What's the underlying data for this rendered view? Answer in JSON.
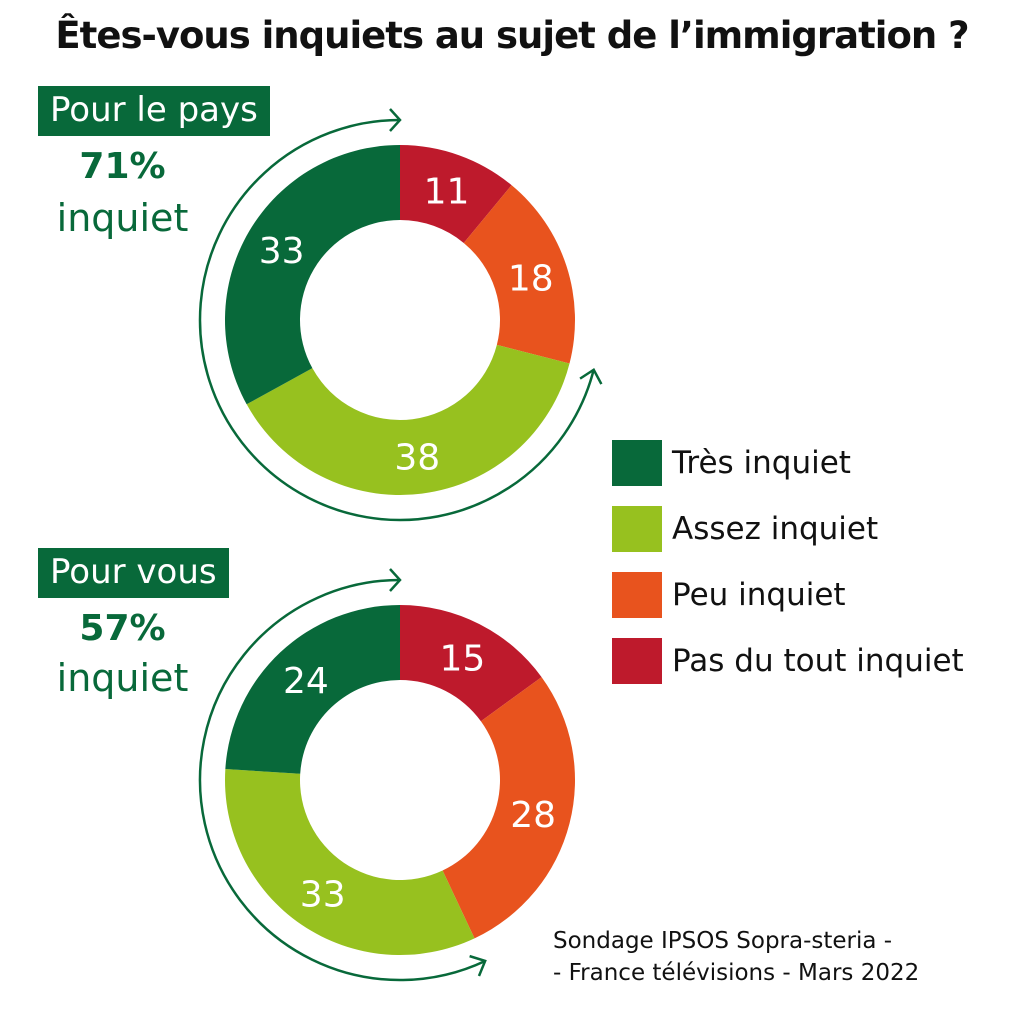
{
  "title": "Êtes-vous inquiets au sujet de l’immigration ?",
  "colors": {
    "tres": "#08693a",
    "assez": "#97c11f",
    "peu": "#e8531e",
    "pas": "#be1a2c"
  },
  "legend": [
    {
      "label": "Très inquiet",
      "color": "#08693a"
    },
    {
      "label": "Assez inquiet",
      "color": "#97c11f"
    },
    {
      "label": "Peu inquiet",
      "color": "#e8531e"
    },
    {
      "label": "Pas du tout inquiet",
      "color": "#be1a2c"
    }
  ],
  "source": {
    "line1": "Sondage IPSOS Sopra-steria -",
    "line2": "- France télévisions - Mars 2022"
  },
  "chart_data": [
    {
      "type": "pie",
      "donut": true,
      "title": "Pour le pays",
      "summary_value": "71%",
      "summary_label": "inquiet",
      "categories": [
        "Pas du tout inquiet",
        "Peu inquiet",
        "Assez inquiet",
        "Très inquiet"
      ],
      "values": [
        11,
        18,
        38,
        33
      ],
      "colors": [
        "#be1a2c",
        "#e8531e",
        "#97c11f",
        "#08693a"
      ]
    },
    {
      "type": "pie",
      "donut": true,
      "title": "Pour vous",
      "summary_value": "57%",
      "summary_label": "inquiet",
      "categories": [
        "Pas du tout inquiet",
        "Peu inquiet",
        "Assez inquiet",
        "Très inquiet"
      ],
      "values": [
        15,
        28,
        33,
        24
      ],
      "colors": [
        "#be1a2c",
        "#e8531e",
        "#97c11f",
        "#08693a"
      ]
    }
  ]
}
